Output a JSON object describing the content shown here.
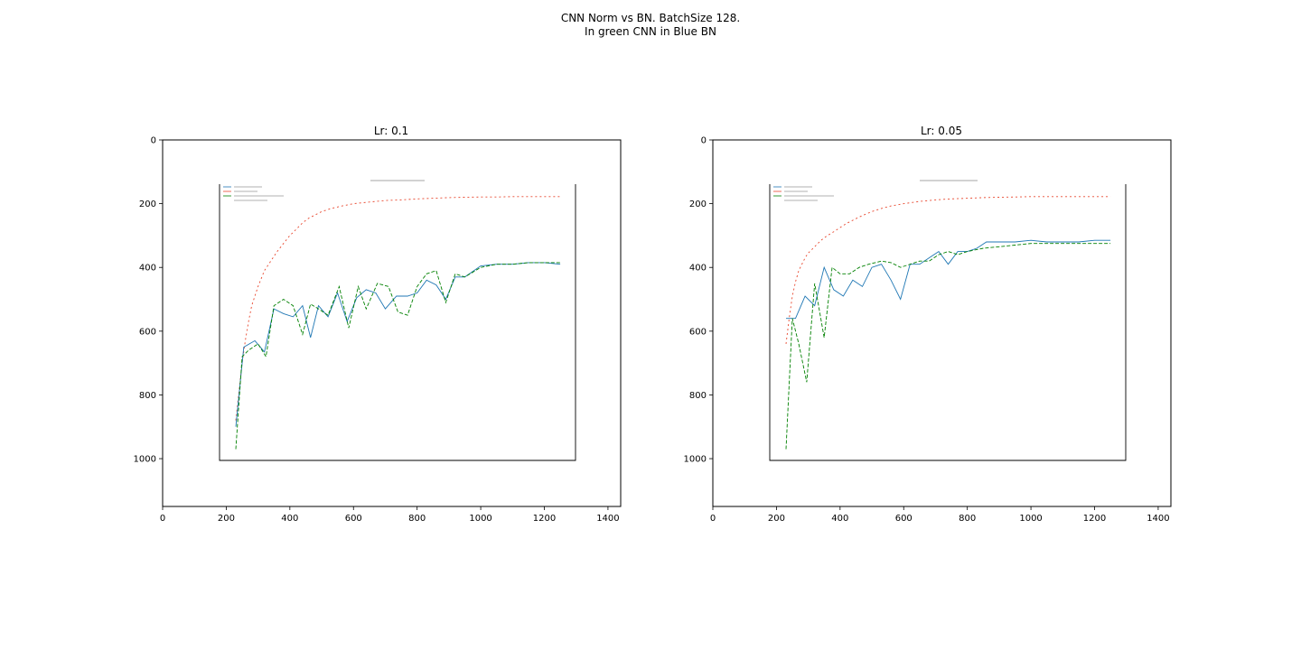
{
  "figure": {
    "suptitle_line1": "CNN Norm vs BN. BatchSize 128.",
    "suptitle_line2": "In green CNN in Blue BN"
  },
  "chart_data": [
    {
      "type": "line",
      "title": "Lr: 0.1",
      "xlabel": "",
      "ylabel": "",
      "xlim": [
        0,
        1440
      ],
      "ylim": [
        1150,
        0
      ],
      "x_ticks": [
        0,
        200,
        400,
        600,
        800,
        1000,
        1200,
        1400
      ],
      "y_ticks": [
        0,
        200,
        400,
        600,
        800,
        1000
      ],
      "grid": false,
      "colors": {
        "top": "#e8452c",
        "blue": "#1f77b4",
        "green": "#008000"
      },
      "series": [
        {
          "x": [
            230,
            240,
            250,
            260,
            270,
            280,
            290,
            300,
            320,
            340,
            360,
            380,
            400,
            420,
            440,
            460,
            480,
            500,
            530,
            560,
            600,
            650,
            700,
            750,
            800,
            850,
            900,
            950,
            1000,
            1050,
            1100,
            1150,
            1200,
            1250
          ],
          "y": [
            880,
            790,
            700,
            630,
            570,
            520,
            490,
            460,
            410,
            380,
            350,
            325,
            300,
            280,
            260,
            245,
            235,
            225,
            215,
            208,
            200,
            195,
            190,
            188,
            185,
            183,
            181,
            180,
            179,
            179,
            178,
            178,
            178,
            178
          ]
        },
        {
          "x": [
            230,
            255,
            290,
            320,
            350,
            380,
            410,
            440,
            465,
            490,
            520,
            550,
            580,
            610,
            640,
            670,
            700,
            735,
            770,
            800,
            830,
            860,
            890,
            920,
            950,
            1000,
            1050,
            1100,
            1150,
            1200,
            1250
          ],
          "y": [
            900,
            650,
            630,
            665,
            530,
            545,
            555,
            520,
            620,
            520,
            555,
            480,
            570,
            495,
            470,
            480,
            530,
            490,
            490,
            480,
            440,
            455,
            500,
            430,
            430,
            395,
            390,
            390,
            385,
            385,
            390
          ]
        },
        {
          "x": [
            230,
            250,
            270,
            300,
            325,
            350,
            380,
            410,
            440,
            465,
            490,
            520,
            555,
            585,
            615,
            640,
            675,
            710,
            740,
            770,
            800,
            830,
            860,
            890,
            920,
            950,
            1000,
            1050,
            1100,
            1150,
            1200,
            1250
          ],
          "y": [
            970,
            680,
            660,
            640,
            680,
            520,
            500,
            520,
            610,
            515,
            530,
            550,
            460,
            590,
            460,
            530,
            450,
            460,
            540,
            550,
            460,
            420,
            410,
            510,
            420,
            430,
            400,
            390,
            390,
            385,
            385,
            385
          ]
        }
      ]
    },
    {
      "type": "line",
      "title": "Lr: 0.05",
      "xlabel": "",
      "ylabel": "",
      "xlim": [
        0,
        1440
      ],
      "ylim": [
        1150,
        0
      ],
      "x_ticks": [
        0,
        200,
        400,
        600,
        800,
        1000,
        1200,
        1400
      ],
      "y_ticks": [
        0,
        200,
        400,
        600,
        800,
        1000
      ],
      "grid": false,
      "colors": {
        "top": "#e8452c",
        "blue": "#1f77b4",
        "green": "#008000"
      },
      "series": [
        {
          "x": [
            230,
            240,
            250,
            260,
            270,
            280,
            290,
            300,
            320,
            340,
            360,
            380,
            400,
            420,
            440,
            460,
            480,
            500,
            530,
            560,
            600,
            650,
            700,
            750,
            800,
            850,
            900,
            950,
            1000,
            1050,
            1100,
            1150,
            1200,
            1250
          ],
          "y": [
            640,
            560,
            490,
            445,
            410,
            390,
            370,
            355,
            335,
            315,
            300,
            288,
            275,
            262,
            252,
            242,
            233,
            225,
            215,
            207,
            200,
            193,
            188,
            185,
            183,
            181,
            180,
            179,
            178,
            178,
            178,
            178,
            178,
            178
          ]
        },
        {
          "x": [
            230,
            260,
            290,
            320,
            350,
            380,
            410,
            440,
            470,
            500,
            530,
            560,
            590,
            620,
            650,
            680,
            710,
            740,
            770,
            800,
            830,
            860,
            900,
            950,
            1000,
            1050,
            1100,
            1150,
            1200,
            1250
          ],
          "y": [
            560,
            560,
            490,
            520,
            400,
            470,
            490,
            440,
            460,
            400,
            390,
            440,
            500,
            390,
            390,
            370,
            350,
            390,
            350,
            350,
            340,
            320,
            320,
            320,
            315,
            320,
            320,
            320,
            315,
            315
          ]
        },
        {
          "x": [
            230,
            250,
            270,
            295,
            320,
            350,
            375,
            400,
            430,
            460,
            490,
            530,
            560,
            590,
            620,
            650,
            680,
            710,
            740,
            770,
            800,
            850,
            900,
            950,
            1000,
            1050,
            1100,
            1150,
            1200,
            1250
          ],
          "y": [
            970,
            560,
            640,
            760,
            450,
            620,
            400,
            420,
            420,
            400,
            390,
            380,
            385,
            400,
            390,
            380,
            380,
            360,
            350,
            360,
            350,
            340,
            335,
            330,
            325,
            325,
            325,
            325,
            325,
            325
          ]
        }
      ]
    }
  ]
}
